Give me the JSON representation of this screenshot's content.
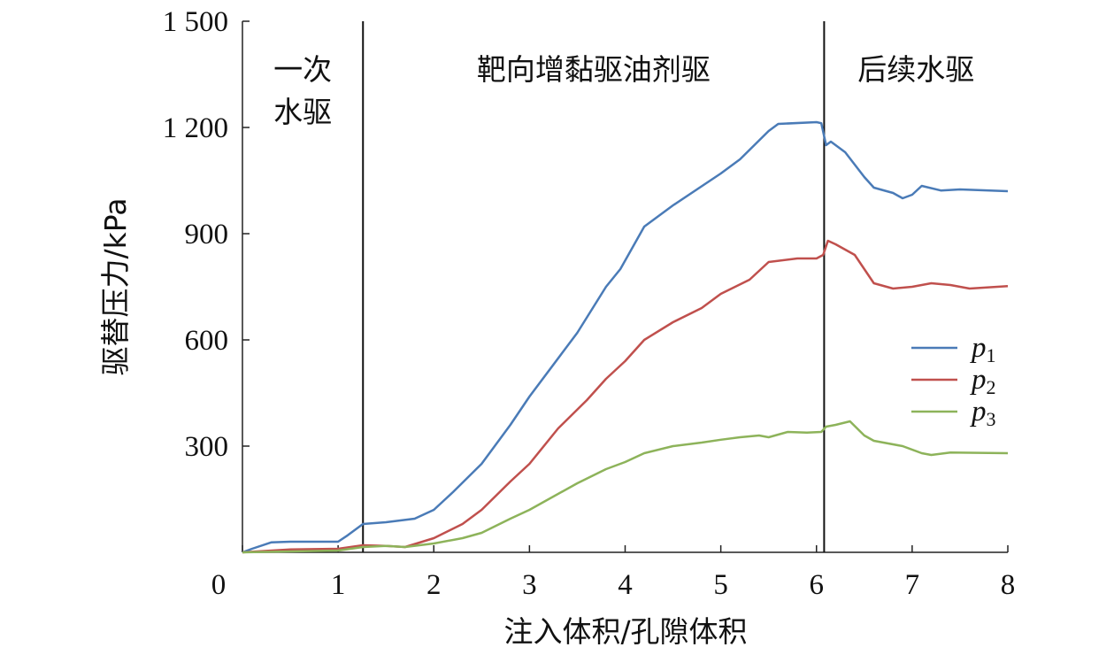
{
  "chart_data": {
    "type": "line",
    "xlabel": "注入体积/孔隙体积",
    "ylabel": "驱替压力/kPa",
    "xlim": [
      0,
      8
    ],
    "ylim": [
      0,
      1500
    ],
    "xticks": [
      "0",
      "1",
      "2",
      "3",
      "4",
      "5",
      "6",
      "7",
      "8"
    ],
    "xtick_values": [
      0,
      1,
      2,
      3,
      4,
      5,
      6,
      7,
      8
    ],
    "yticks": [
      "300",
      "600",
      "900",
      "1 200",
      "1 500"
    ],
    "ytick_values": [
      300,
      600,
      900,
      1200,
      1500
    ],
    "grid": false,
    "legend_position": "right",
    "stage_boundaries": [
      1.26,
      6.08
    ],
    "stages": [
      {
        "label_lines": [
          "一次",
          "水驱"
        ]
      },
      {
        "label_lines": [
          "靶向增黏驱油剂驱"
        ]
      },
      {
        "label_lines": [
          "后续水驱"
        ]
      }
    ],
    "series": [
      {
        "name": "p",
        "sub": "1",
        "color": "#4a7bb7",
        "x": [
          0,
          0.1,
          0.3,
          0.5,
          1.0,
          1.1,
          1.26,
          1.5,
          1.8,
          2.0,
          2.2,
          2.5,
          2.8,
          3.0,
          3.5,
          3.8,
          3.95,
          4.2,
          4.5,
          5.0,
          5.2,
          5.5,
          5.6,
          6.0,
          6.05,
          6.1,
          6.15,
          6.3,
          6.5,
          6.6,
          6.8,
          6.9,
          7.0,
          7.1,
          7.3,
          7.5,
          8.0
        ],
        "y": [
          0,
          10,
          28,
          30,
          30,
          48,
          80,
          85,
          95,
          120,
          170,
          250,
          360,
          440,
          620,
          750,
          800,
          920,
          980,
          1070,
          1110,
          1190,
          1210,
          1215,
          1212,
          1150,
          1160,
          1130,
          1060,
          1030,
          1015,
          1000,
          1010,
          1035,
          1022,
          1025,
          1020
        ]
      },
      {
        "name": "p",
        "sub": "2",
        "color": "#c0504d",
        "x": [
          0,
          0.5,
          1.0,
          1.26,
          1.5,
          1.7,
          2.0,
          2.3,
          2.5,
          2.8,
          3.0,
          3.3,
          3.6,
          3.8,
          4.0,
          4.2,
          4.5,
          4.8,
          5.0,
          5.3,
          5.5,
          5.8,
          6.0,
          6.07,
          6.12,
          6.2,
          6.4,
          6.6,
          6.8,
          7.0,
          7.2,
          7.4,
          7.6,
          8.0
        ],
        "y": [
          0,
          8,
          10,
          20,
          18,
          15,
          40,
          80,
          120,
          200,
          250,
          350,
          430,
          490,
          540,
          600,
          650,
          690,
          730,
          770,
          820,
          830,
          830,
          840,
          880,
          870,
          840,
          760,
          745,
          750,
          760,
          755,
          745,
          752
        ]
      },
      {
        "name": "p",
        "sub": "3",
        "color": "#8db35a",
        "x": [
          0,
          1.0,
          1.26,
          1.5,
          1.7,
          2.0,
          2.3,
          2.5,
          2.8,
          3.0,
          3.5,
          3.8,
          4.0,
          4.2,
          4.5,
          4.8,
          5.0,
          5.2,
          5.4,
          5.5,
          5.7,
          5.9,
          6.05,
          6.1,
          6.2,
          6.35,
          6.5,
          6.6,
          6.9,
          7.1,
          7.2,
          7.4,
          8.0
        ],
        "y": [
          0,
          5,
          15,
          18,
          15,
          25,
          40,
          55,
          95,
          120,
          195,
          235,
          255,
          280,
          300,
          310,
          318,
          325,
          330,
          325,
          340,
          338,
          340,
          355,
          360,
          370,
          330,
          315,
          300,
          280,
          275,
          282,
          280
        ]
      }
    ]
  }
}
